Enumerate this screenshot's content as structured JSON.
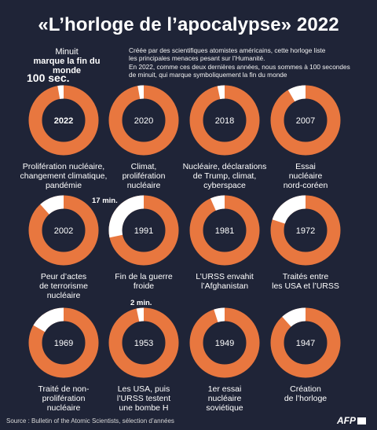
{
  "title": "«L’horloge de l’apocalypse» 2022",
  "legend": {
    "minuit_label": "Minuit",
    "marker_label": "marque la fin du monde",
    "current_value": "100 sec."
  },
  "intro_lines": [
    "Créée par des scientifiques atomistes américains, cette horloge liste",
    "les principales menaces pesant sur l’Humanité.",
    "En 2022, comme ces deux dernières années, nous sommes à 100 secondes",
    "de minuit, qui marque symboliquement la fin du monde"
  ],
  "colors": {
    "background": "#1f2437",
    "ring": "#e8773f",
    "remaining": "#ffffff"
  },
  "chart_data": {
    "type": "pie",
    "unit": "seconds before midnight (segment of a 60-minute dial)",
    "annotations": {
      "1991": "17 min.",
      "1953": "2 min."
    },
    "clocks": [
      {
        "year": "2022",
        "seconds_to_midnight": 100,
        "caption": [
          "Prolifération nucléaire,",
          "changement climatique,",
          "pandémie"
        ]
      },
      {
        "year": "2020",
        "seconds_to_midnight": 100,
        "caption": [
          "Climat,",
          "prolifération",
          "nucléaire"
        ]
      },
      {
        "year": "2018",
        "seconds_to_midnight": 120,
        "caption": [
          "Nucléaire, déclarations",
          "de Trump, climat,",
          "cyberspace"
        ]
      },
      {
        "year": "2007",
        "seconds_to_midnight": 300,
        "caption": [
          "Essai",
          "nucléaire",
          "nord-coréen"
        ]
      },
      {
        "year": "2002",
        "seconds_to_midnight": 420,
        "caption": [
          "Peur d’actes",
          "de terrorisme",
          "nucléaire"
        ]
      },
      {
        "year": "1991",
        "seconds_to_midnight": 1020,
        "caption": [
          "Fin de la guerre",
          "froide"
        ]
      },
      {
        "year": "1981",
        "seconds_to_midnight": 240,
        "caption": [
          "L’URSS envahit",
          "l’Afghanistan"
        ]
      },
      {
        "year": "1972",
        "seconds_to_midnight": 720,
        "caption": [
          "Traités entre",
          "les USA et l’URSS"
        ]
      },
      {
        "year": "1969",
        "seconds_to_midnight": 600,
        "caption": [
          "Traité de non-",
          "prolifération",
          "nucléaire"
        ]
      },
      {
        "year": "1953",
        "seconds_to_midnight": 120,
        "caption": [
          "Les USA, puis",
          "l’URSS testent",
          "une bombe H"
        ]
      },
      {
        "year": "1949",
        "seconds_to_midnight": 180,
        "caption": [
          "1er essai",
          "nucléaire",
          "soviétique"
        ]
      },
      {
        "year": "1947",
        "seconds_to_midnight": 420,
        "caption": [
          "Création",
          "de l’horloge"
        ]
      }
    ]
  },
  "footer": {
    "source": "Source : Bulletin of the Atomic Scientists, sélection d’années",
    "agency": "AFP"
  }
}
